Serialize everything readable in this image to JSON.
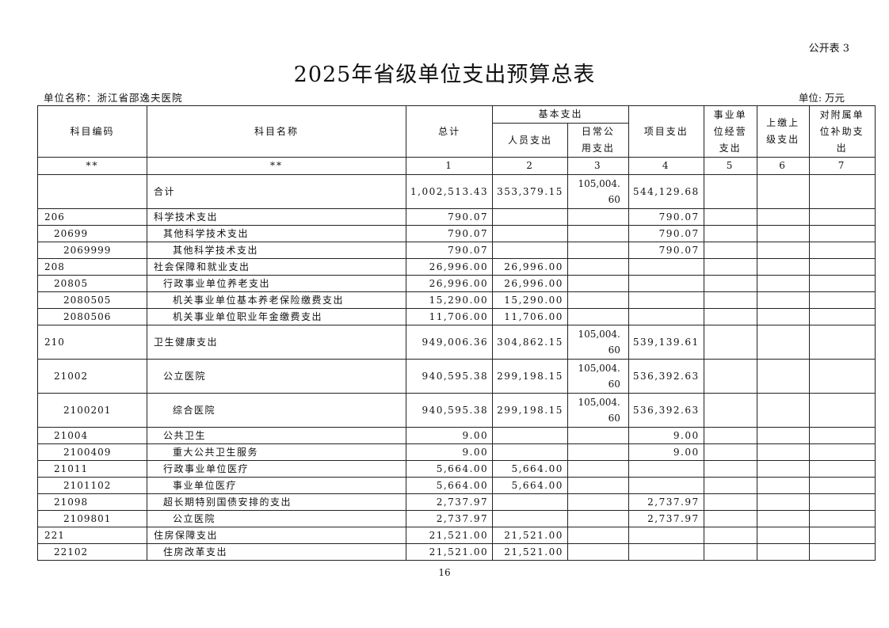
{
  "form_no": "公开表 3",
  "title": "2025年省级单位支出预算总表",
  "unit_name": "单位名称：浙江省邵逸夫医院",
  "unit": "单位: 万元",
  "headers": {
    "code": "科目编码",
    "name": "科目名称",
    "total": "总计",
    "basic": "基本支出",
    "personnel": "人员支出",
    "daily": "日常公用支出",
    "project": "项目支出",
    "business": "事业单位经营支出",
    "upper": "上缴上级支出",
    "subsidy": "对附属单位补助支出"
  },
  "index_row": [
    "**",
    "**",
    "1",
    "2",
    "3",
    "4",
    "5",
    "6",
    "7"
  ],
  "rows": [
    {
      "code": "",
      "name": "合计",
      "level": 0,
      "total": "1,002,513.43",
      "personnel": "353,379.15",
      "daily": "105,004.60",
      "project": "544,129.68"
    },
    {
      "code": "206",
      "name": "科学技术支出",
      "level": 0,
      "total": "790.07",
      "personnel": "",
      "daily": "",
      "project": "790.07"
    },
    {
      "code": "20699",
      "name": "其他科学技术支出",
      "level": 1,
      "total": "790.07",
      "personnel": "",
      "daily": "",
      "project": "790.07"
    },
    {
      "code": "2069999",
      "name": "其他科学技术支出",
      "level": 2,
      "total": "790.07",
      "personnel": "",
      "daily": "",
      "project": "790.07"
    },
    {
      "code": "208",
      "name": "社会保障和就业支出",
      "level": 0,
      "total": "26,996.00",
      "personnel": "26,996.00",
      "daily": "",
      "project": ""
    },
    {
      "code": "20805",
      "name": "行政事业单位养老支出",
      "level": 1,
      "total": "26,996.00",
      "personnel": "26,996.00",
      "daily": "",
      "project": ""
    },
    {
      "code": "2080505",
      "name": "机关事业单位基本养老保险缴费支出",
      "level": 2,
      "total": "15,290.00",
      "personnel": "15,290.00",
      "daily": "",
      "project": ""
    },
    {
      "code": "2080506",
      "name": "机关事业单位职业年金缴费支出",
      "level": 2,
      "total": "11,706.00",
      "personnel": "11,706.00",
      "daily": "",
      "project": ""
    },
    {
      "code": "210",
      "name": "卫生健康支出",
      "level": 0,
      "total": "949,006.36",
      "personnel": "304,862.15",
      "daily": "105,004.60",
      "project": "539,139.61"
    },
    {
      "code": "21002",
      "name": "公立医院",
      "level": 1,
      "total": "940,595.38",
      "personnel": "299,198.15",
      "daily": "105,004.60",
      "project": "536,392.63"
    },
    {
      "code": "2100201",
      "name": "综合医院",
      "level": 2,
      "total": "940,595.38",
      "personnel": "299,198.15",
      "daily": "105,004.60",
      "project": "536,392.63"
    },
    {
      "code": "21004",
      "name": "公共卫生",
      "level": 1,
      "total": "9.00",
      "personnel": "",
      "daily": "",
      "project": "9.00"
    },
    {
      "code": "2100409",
      "name": "重大公共卫生服务",
      "level": 2,
      "total": "9.00",
      "personnel": "",
      "daily": "",
      "project": "9.00"
    },
    {
      "code": "21011",
      "name": "行政事业单位医疗",
      "level": 1,
      "total": "5,664.00",
      "personnel": "5,664.00",
      "daily": "",
      "project": ""
    },
    {
      "code": "2101102",
      "name": "事业单位医疗",
      "level": 2,
      "total": "5,664.00",
      "personnel": "5,664.00",
      "daily": "",
      "project": ""
    },
    {
      "code": "21098",
      "name": "超长期特别国债安排的支出",
      "level": 1,
      "total": "2,737.97",
      "personnel": "",
      "daily": "",
      "project": "2,737.97"
    },
    {
      "code": "2109801",
      "name": "公立医院",
      "level": 2,
      "total": "2,737.97",
      "personnel": "",
      "daily": "",
      "project": "2,737.97"
    },
    {
      "code": "221",
      "name": "住房保障支出",
      "level": 0,
      "total": "21,521.00",
      "personnel": "21,521.00",
      "daily": "",
      "project": ""
    },
    {
      "code": "22102",
      "name": "住房改革支出",
      "level": 1,
      "total": "21,521.00",
      "personnel": "21,521.00",
      "daily": "",
      "project": ""
    }
  ],
  "page_number": "16"
}
